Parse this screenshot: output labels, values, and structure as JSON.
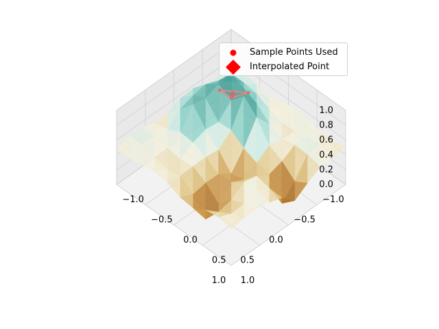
{
  "chart_data": {
    "type": "surface3d",
    "title": "",
    "xlabel": "",
    "ylabel": "",
    "zlabel": "",
    "xlim": [
      -1.0,
      1.0
    ],
    "ylim": [
      -1.0,
      1.0
    ],
    "zlim": [
      0.0,
      1.0
    ],
    "x_ticks": [
      "−1.0",
      "−0.5",
      "0.0",
      "0.5",
      "1.0"
    ],
    "y_ticks": [
      "−1.0",
      "−0.5",
      "0.0",
      "0.5",
      "1.0"
    ],
    "z_ticks": [
      "0.0",
      "0.2",
      "0.4",
      "0.6",
      "0.8",
      "1.0"
    ],
    "colormap": "BrBG",
    "grid": true,
    "legend_position": "upper-right",
    "legend": [
      {
        "label": "Sample Points Used",
        "marker": "circle",
        "color": "#ff0000"
      },
      {
        "label": "Interpolated Point",
        "marker": "diamond",
        "color": "#ff0000"
      }
    ],
    "sample_points": [
      {
        "x": -0.35,
        "y": -0.55,
        "z": 0.78
      },
      {
        "x": -0.55,
        "y": -0.25,
        "z": 0.8
      },
      {
        "x": -0.5,
        "y": -0.5,
        "z": 0.62
      }
    ],
    "interpolated_point": {
      "x": -0.46,
      "y": -0.43,
      "z": 0.73
    }
  }
}
